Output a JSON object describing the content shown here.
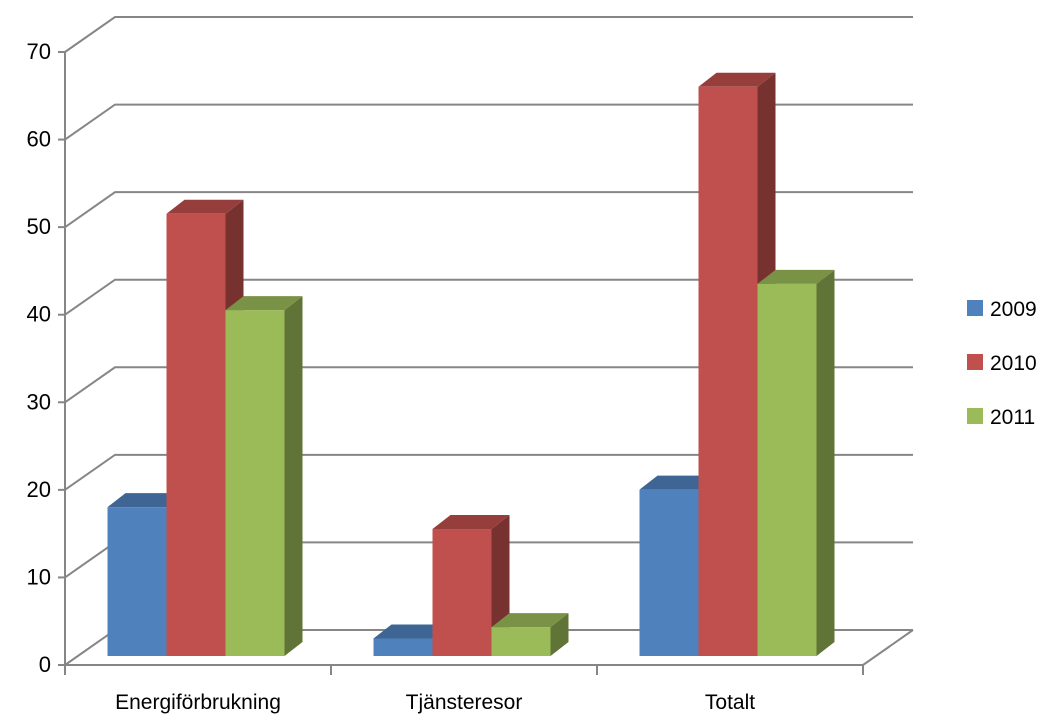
{
  "chart_data": {
    "type": "bar",
    "subtype": "3d-clustered-column",
    "categories": [
      "Energiförbrukning",
      "Tjänsteresor",
      "Totalt"
    ],
    "series": [
      {
        "name": "2009",
        "values": [
          17,
          2,
          19
        ],
        "color": "#4F81BD"
      },
      {
        "name": "2010",
        "values": [
          50.5,
          14.5,
          65
        ],
        "color": "#C0504D"
      },
      {
        "name": "2011",
        "values": [
          39.5,
          3.3,
          42.5
        ],
        "color": "#9BBB59"
      }
    ],
    "ylim": [
      0,
      70
    ],
    "yticks": [
      0,
      10,
      20,
      30,
      40,
      50,
      60,
      70
    ],
    "grid": true,
    "legend_position": "right",
    "title": "",
    "xlabel": "",
    "ylabel": ""
  }
}
